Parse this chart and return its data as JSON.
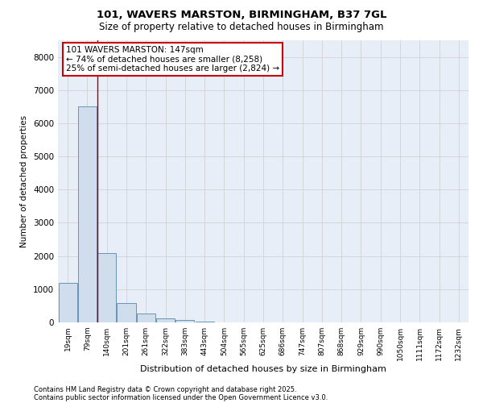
{
  "title1": "101, WAVERS MARSTON, BIRMINGHAM, B37 7GL",
  "title2": "Size of property relative to detached houses in Birmingham",
  "xlabel": "Distribution of detached houses by size in Birmingham",
  "ylabel": "Number of detached properties",
  "categories": [
    "19sqm",
    "79sqm",
    "140sqm",
    "201sqm",
    "261sqm",
    "322sqm",
    "383sqm",
    "443sqm",
    "504sqm",
    "565sqm",
    "625sqm",
    "686sqm",
    "747sqm",
    "807sqm",
    "868sqm",
    "929sqm",
    "990sqm",
    "1050sqm",
    "1111sqm",
    "1172sqm",
    "1232sqm"
  ],
  "values": [
    1200,
    6500,
    2100,
    580,
    260,
    120,
    70,
    25,
    8,
    3,
    1,
    0,
    0,
    0,
    0,
    0,
    0,
    0,
    0,
    0,
    0
  ],
  "bar_color": "#cfdded",
  "bar_edge_color": "#5588aa",
  "grid_color": "#cccccc",
  "vline_color": "#aa0000",
  "annotation_text": "101 WAVERS MARSTON: 147sqm\n← 74% of detached houses are smaller (8,258)\n25% of semi-detached houses are larger (2,824) →",
  "annotation_box_color": "#ffffff",
  "annotation_box_edge": "#cc0000",
  "footnote1": "Contains HM Land Registry data © Crown copyright and database right 2025.",
  "footnote2": "Contains public sector information licensed under the Open Government Licence v3.0.",
  "ylim": [
    0,
    8500
  ],
  "yticks": [
    0,
    1000,
    2000,
    3000,
    4000,
    5000,
    6000,
    7000,
    8000
  ],
  "bg_color": "#e8eef8",
  "vline_index": 1.5
}
